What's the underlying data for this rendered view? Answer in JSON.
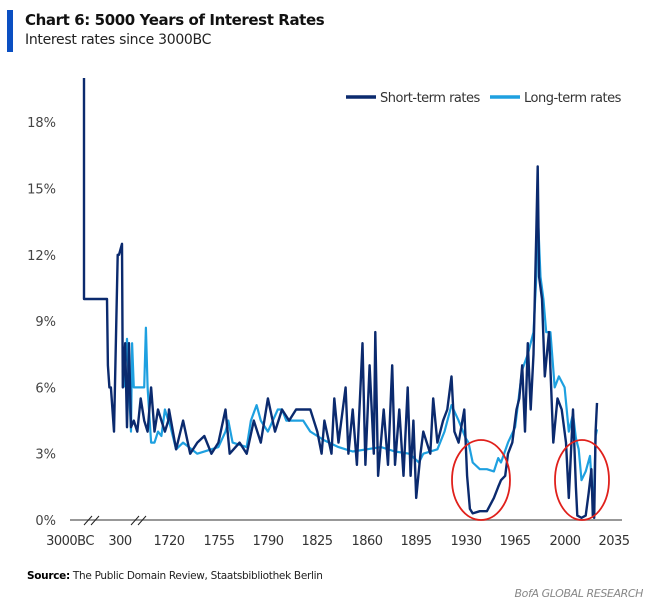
{
  "title": "Chart 6: 5000 Years of Interest Rates",
  "subtitle": "Interest rates since 3000BC",
  "source_label": "Source:",
  "source_text": "The Public Domain Review, Staatsbibliothek Berlin",
  "brand": "BofA GLOBAL RESEARCH",
  "chart_data": {
    "type": "line",
    "title": "Chart 6: 5000 Years of Interest Rates",
    "subtitle": "Interest rates since 3000BC",
    "x_ticks": [
      "3000BC",
      "300",
      "1720",
      "1755",
      "1790",
      "1825",
      "1860",
      "1895",
      "1930",
      "1965",
      "2000",
      "2035"
    ],
    "y_ticks": [
      "0%",
      "3%",
      "6%",
      "9%",
      "12%",
      "15%",
      "18%"
    ],
    "ylim": [
      0,
      19
    ],
    "x_axis_breaks": true,
    "legend_position": "top-right",
    "annotations": [
      "red circle around 1930s-1950s",
      "red circle around 2008-2021"
    ],
    "series": [
      {
        "name": "Short-term rates",
        "color": "#0b2a6e",
        "points": [
          [
            -2076,
            20
          ],
          [
            -2076,
            10
          ],
          [
            -558,
            10
          ],
          [
            -500,
            7
          ],
          [
            -400,
            6
          ],
          [
            -300,
            6
          ],
          [
            -96,
            4
          ],
          [
            150,
            12
          ],
          [
            234,
            12
          ],
          [
            358,
            12.5
          ],
          [
            380,
            6
          ],
          [
            450,
            8
          ],
          [
            503,
            4.2
          ],
          [
            560,
            8
          ],
          [
            620,
            4.2
          ],
          [
            700,
            4.5
          ],
          [
            800,
            4
          ],
          [
            900,
            5.5
          ],
          [
            1000,
            4.5
          ],
          [
            1100,
            4
          ],
          [
            1200,
            6
          ],
          [
            1300,
            4
          ],
          [
            1400,
            5
          ],
          [
            1500,
            4.5
          ],
          [
            1600,
            4
          ],
          [
            1700,
            4.5
          ],
          [
            1720,
            5
          ],
          [
            1725,
            3.2
          ],
          [
            1730,
            4.5
          ],
          [
            1735,
            3
          ],
          [
            1740,
            3.5
          ],
          [
            1745,
            3.8
          ],
          [
            1750,
            3
          ],
          [
            1755,
            3.5
          ],
          [
            1760,
            5
          ],
          [
            1763,
            3
          ],
          [
            1770,
            3.5
          ],
          [
            1775,
            3
          ],
          [
            1780,
            4.5
          ],
          [
            1785,
            3.5
          ],
          [
            1790,
            5.5
          ],
          [
            1795,
            4
          ],
          [
            1800,
            5
          ],
          [
            1805,
            4.5
          ],
          [
            1810,
            5
          ],
          [
            1820,
            5
          ],
          [
            1825,
            4
          ],
          [
            1828,
            3
          ],
          [
            1830,
            4.5
          ],
          [
            1835,
            3
          ],
          [
            1837,
            5.5
          ],
          [
            1840,
            3.5
          ],
          [
            1845,
            6
          ],
          [
            1847,
            3
          ],
          [
            1850,
            5
          ],
          [
            1853,
            2.5
          ],
          [
            1857,
            8
          ],
          [
            1859,
            2.5
          ],
          [
            1862,
            7
          ],
          [
            1865,
            3
          ],
          [
            1866,
            8.5
          ],
          [
            1868,
            2
          ],
          [
            1872,
            5
          ],
          [
            1875,
            2.5
          ],
          [
            1878,
            7
          ],
          [
            1880,
            2.5
          ],
          [
            1883,
            5
          ],
          [
            1886,
            2
          ],
          [
            1889,
            6
          ],
          [
            1891,
            2
          ],
          [
            1893,
            4.5
          ],
          [
            1895,
            1
          ],
          [
            1898,
            3
          ],
          [
            1900,
            4
          ],
          [
            1905,
            3
          ],
          [
            1907,
            5.5
          ],
          [
            1910,
            3.5
          ],
          [
            1914,
            4.5
          ],
          [
            1917,
            5
          ],
          [
            1920,
            6.5
          ],
          [
            1922,
            4
          ],
          [
            1925,
            3.5
          ],
          [
            1929,
            5
          ],
          [
            1931,
            2
          ],
          [
            1933,
            0.5
          ],
          [
            1935,
            0.3
          ],
          [
            1940,
            0.4
          ],
          [
            1945,
            0.4
          ],
          [
            1950,
            1
          ],
          [
            1953,
            1.5
          ],
          [
            1955,
            1.8
          ],
          [
            1958,
            2
          ],
          [
            1960,
            3
          ],
          [
            1963,
            3.5
          ],
          [
            1966,
            5
          ],
          [
            1968,
            5.5
          ],
          [
            1970,
            7
          ],
          [
            1972,
            4
          ],
          [
            1974,
            8
          ],
          [
            1976,
            5
          ],
          [
            1978,
            7.5
          ],
          [
            1980,
            13
          ],
          [
            1981,
            16
          ],
          [
            1982,
            11
          ],
          [
            1984,
            10
          ],
          [
            1986,
            6.5
          ],
          [
            1989,
            8.5
          ],
          [
            1992,
            3.5
          ],
          [
            1995,
            5.5
          ],
          [
            1998,
            5
          ],
          [
            2001,
            3.5
          ],
          [
            2003,
            1
          ],
          [
            2006,
            5
          ],
          [
            2008,
            1.5
          ],
          [
            2009,
            0.2
          ],
          [
            2012,
            0.1
          ],
          [
            2015,
            0.2
          ],
          [
            2017,
            1.2
          ],
          [
            2019,
            2.3
          ],
          [
            2020,
            0.2
          ],
          [
            2021,
            0.1
          ],
          [
            2022,
            4
          ],
          [
            2023,
            5.3
          ]
        ]
      },
      {
        "name": "Long-term rates",
        "color": "#1ea0e0",
        "points": [
          [
            416,
            6
          ],
          [
            503,
            8.2
          ],
          [
            560,
            6
          ],
          [
            620,
            4
          ],
          [
            650,
            8
          ],
          [
            700,
            6
          ],
          [
            800,
            6
          ],
          [
            900,
            6
          ],
          [
            1000,
            6
          ],
          [
            1050,
            8.7
          ],
          [
            1100,
            6
          ],
          [
            1200,
            3.5
          ],
          [
            1300,
            3.5
          ],
          [
            1400,
            4
          ],
          [
            1500,
            3.8
          ],
          [
            1600,
            5
          ],
          [
            1700,
            4.5
          ],
          [
            1720,
            4.5
          ],
          [
            1725,
            3.2
          ],
          [
            1730,
            3.5
          ],
          [
            1740,
            3
          ],
          [
            1750,
            3.2
          ],
          [
            1755,
            3.3
          ],
          [
            1760,
            4
          ],
          [
            1762,
            4.5
          ],
          [
            1765,
            3.5
          ],
          [
            1775,
            3.3
          ],
          [
            1778,
            4.5
          ],
          [
            1782,
            5.2
          ],
          [
            1785,
            4.5
          ],
          [
            1790,
            4
          ],
          [
            1797,
            5
          ],
          [
            1800,
            5
          ],
          [
            1803,
            4.5
          ],
          [
            1810,
            4.5
          ],
          [
            1815,
            4.5
          ],
          [
            1820,
            4
          ],
          [
            1825,
            3.8
          ],
          [
            1830,
            3.6
          ],
          [
            1840,
            3.3
          ],
          [
            1845,
            3.2
          ],
          [
            1850,
            3.1
          ],
          [
            1860,
            3.2
          ],
          [
            1870,
            3.3
          ],
          [
            1880,
            3.1
          ],
          [
            1890,
            3
          ],
          [
            1897,
            2.6
          ],
          [
            1900,
            3
          ],
          [
            1910,
            3.2
          ],
          [
            1915,
            4
          ],
          [
            1920,
            5.2
          ],
          [
            1925,
            4.5
          ],
          [
            1930,
            3.7
          ],
          [
            1932,
            3.5
          ],
          [
            1935,
            2.6
          ],
          [
            1940,
            2.3
          ],
          [
            1945,
            2.3
          ],
          [
            1950,
            2.2
          ],
          [
            1953,
            2.8
          ],
          [
            1955,
            2.6
          ],
          [
            1960,
            3.5
          ],
          [
            1965,
            4.2
          ],
          [
            1970,
            6.8
          ],
          [
            1974,
            7.5
          ],
          [
            1978,
            8.5
          ],
          [
            1980,
            11
          ],
          [
            1981,
            14
          ],
          [
            1983,
            11
          ],
          [
            1985,
            10
          ],
          [
            1987,
            8.5
          ],
          [
            1990,
            8.5
          ],
          [
            1993,
            6
          ],
          [
            1996,
            6.5
          ],
          [
            2000,
            6
          ],
          [
            2003,
            4
          ],
          [
            2006,
            4.8
          ],
          [
            2008,
            3.7
          ],
          [
            2010,
            3.2
          ],
          [
            2012,
            1.8
          ],
          [
            2015,
            2.2
          ],
          [
            2018,
            2.9
          ],
          [
            2020,
            0.9
          ],
          [
            2021,
            1.5
          ],
          [
            2022,
            3.8
          ],
          [
            2023,
            4.1
          ]
        ]
      }
    ]
  }
}
